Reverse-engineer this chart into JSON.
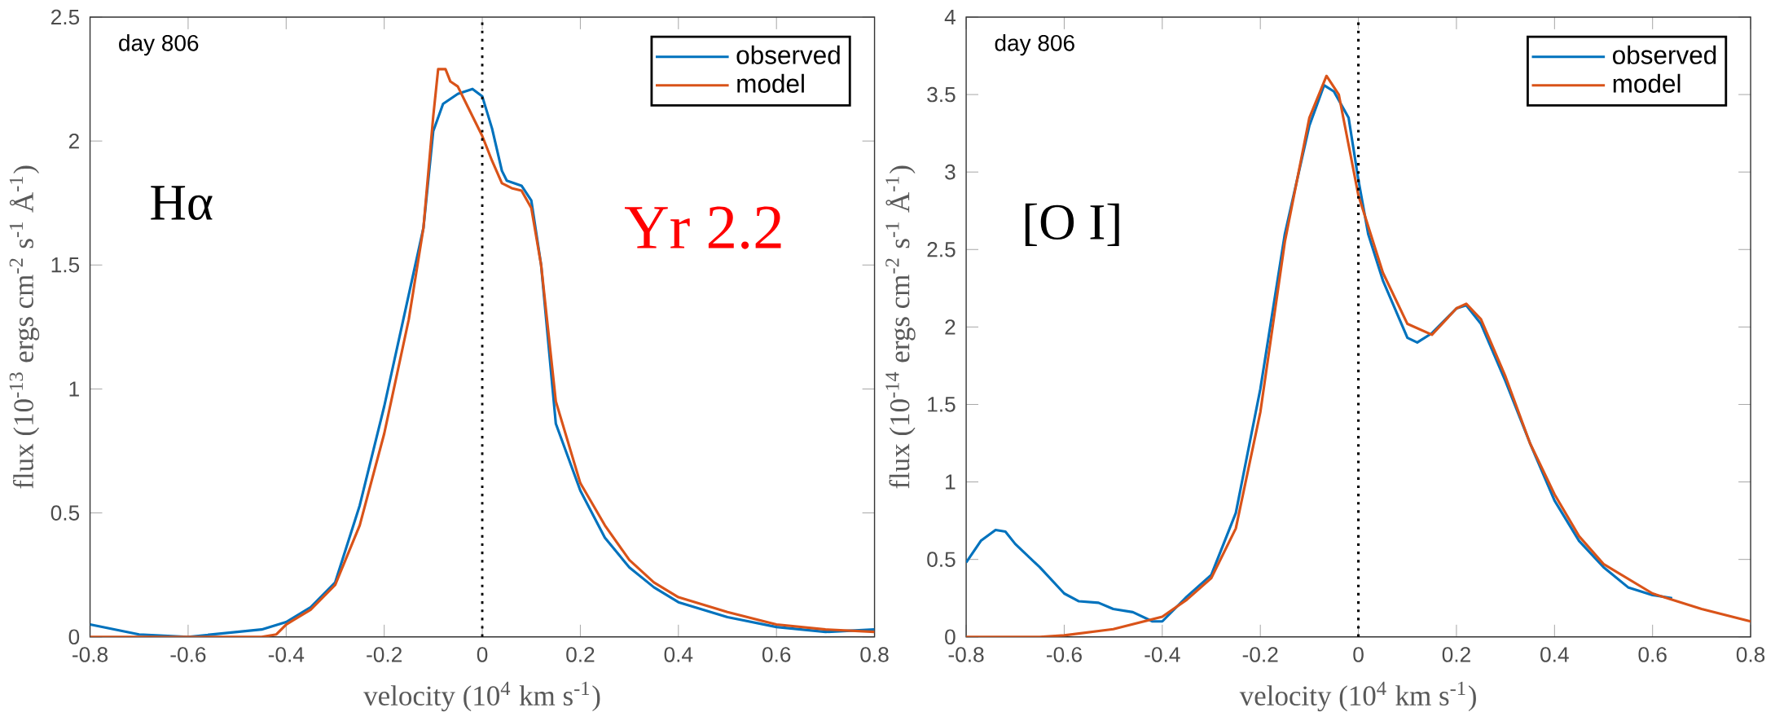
{
  "chart_data": [
    {
      "type": "line",
      "xlabel": "velocity (10$^{4}$ km s$^{-1}$)",
      "ylabel": "flux (10$^{-13}$ ergs cm$^{-2}$ s$^{-1}$ Å$^{-1}$)",
      "annotations": [
        "day 806",
        "Hα",
        "Yr  2.2"
      ],
      "xlim": [
        -0.8,
        0.8
      ],
      "ylim": [
        0,
        2.5
      ],
      "xticks": [
        -0.8,
        -0.6,
        -0.4,
        -0.2,
        0,
        0.2,
        0.4,
        0.6,
        0.8
      ],
      "yticks": [
        0,
        0.5,
        1,
        1.5,
        2,
        2.5
      ],
      "grid": false,
      "legend": "top right",
      "line_style": "solid",
      "ref_lines": [
        {
          "axis": "x",
          "value": 0,
          "color": "#000000",
          "line_style": "dotted"
        }
      ],
      "series": [
        {
          "name": "observed",
          "color": "#0072bd",
          "x": [
            -0.8,
            -0.7,
            -0.6,
            -0.5,
            -0.45,
            -0.4,
            -0.35,
            -0.3,
            -0.25,
            -0.2,
            -0.15,
            -0.12,
            -0.1,
            -0.08,
            -0.05,
            -0.02,
            0,
            0.02,
            0.04,
            0.05,
            0.08,
            0.1,
            0.12,
            0.15,
            0.2,
            0.25,
            0.3,
            0.35,
            0.4,
            0.5,
            0.6,
            0.7,
            0.8
          ],
          "values": [
            0.05,
            0.01,
            0.0,
            0.02,
            0.03,
            0.06,
            0.12,
            0.22,
            0.53,
            0.93,
            1.38,
            1.65,
            2.04,
            2.15,
            2.19,
            2.21,
            2.18,
            2.05,
            1.88,
            1.84,
            1.82,
            1.76,
            1.5,
            0.86,
            0.59,
            0.4,
            0.28,
            0.2,
            0.14,
            0.08,
            0.04,
            0.02,
            0.03
          ]
        },
        {
          "name": "model",
          "color": "#d95319",
          "x": [
            -0.8,
            -0.45,
            -0.42,
            -0.4,
            -0.35,
            -0.3,
            -0.25,
            -0.2,
            -0.15,
            -0.12,
            -0.1,
            -0.09,
            -0.075,
            -0.065,
            -0.05,
            -0.03,
            0,
            0.02,
            0.04,
            0.06,
            0.08,
            0.1,
            0.12,
            0.15,
            0.2,
            0.25,
            0.3,
            0.35,
            0.4,
            0.5,
            0.6,
            0.7,
            0.8
          ],
          "values": [
            0,
            0,
            0.01,
            0.05,
            0.11,
            0.21,
            0.45,
            0.82,
            1.28,
            1.65,
            2.1,
            2.29,
            2.29,
            2.24,
            2.22,
            2.14,
            2.02,
            1.92,
            1.83,
            1.81,
            1.8,
            1.73,
            1.5,
            0.95,
            0.62,
            0.45,
            0.31,
            0.22,
            0.16,
            0.1,
            0.05,
            0.03,
            0.02
          ]
        }
      ]
    },
    {
      "type": "line",
      "xlabel": "velocity (10$^{4}$ km s$^{-1}$)",
      "ylabel": "flux (10$^{-14}$ ergs cm$^{-2}$ s$^{-1}$ Å$^{-1}$)",
      "annotations": [
        "day 806",
        "[O I]"
      ],
      "xlim": [
        -0.8,
        0.8
      ],
      "ylim": [
        0,
        4
      ],
      "xticks": [
        -0.8,
        -0.6,
        -0.4,
        -0.2,
        0,
        0.2,
        0.4,
        0.6,
        0.8
      ],
      "yticks": [
        0,
        0.5,
        1,
        1.5,
        2,
        2.5,
        3,
        3.5,
        4
      ],
      "grid": false,
      "legend": "top right",
      "line_style": "solid",
      "ref_lines": [
        {
          "axis": "x",
          "value": 0,
          "color": "#000000",
          "line_style": "dotted"
        }
      ],
      "series": [
        {
          "name": "observed",
          "color": "#0072bd",
          "x": [
            -0.8,
            -0.77,
            -0.74,
            -0.72,
            -0.7,
            -0.65,
            -0.6,
            -0.57,
            -0.53,
            -0.5,
            -0.46,
            -0.42,
            -0.4,
            -0.35,
            -0.3,
            -0.25,
            -0.2,
            -0.15,
            -0.1,
            -0.07,
            -0.05,
            -0.02,
            0,
            0.02,
            0.05,
            0.1,
            0.12,
            0.15,
            0.2,
            0.22,
            0.25,
            0.3,
            0.35,
            0.4,
            0.45,
            0.5,
            0.55,
            0.6,
            0.64
          ],
          "values": [
            0.48,
            0.62,
            0.69,
            0.68,
            0.6,
            0.45,
            0.28,
            0.23,
            0.22,
            0.18,
            0.16,
            0.1,
            0.1,
            0.26,
            0.4,
            0.8,
            1.6,
            2.6,
            3.3,
            3.56,
            3.52,
            3.35,
            2.95,
            2.6,
            2.3,
            1.93,
            1.9,
            1.96,
            2.12,
            2.14,
            2.02,
            1.65,
            1.25,
            0.88,
            0.62,
            0.45,
            0.32,
            0.27,
            0.25
          ]
        },
        {
          "name": "model",
          "color": "#d95319",
          "x": [
            -0.8,
            -0.65,
            -0.6,
            -0.5,
            -0.4,
            -0.35,
            -0.3,
            -0.25,
            -0.2,
            -0.15,
            -0.1,
            -0.065,
            -0.04,
            0,
            0.05,
            0.1,
            0.15,
            0.2,
            0.22,
            0.25,
            0.3,
            0.35,
            0.4,
            0.45,
            0.5,
            0.6,
            0.7,
            0.8
          ],
          "values": [
            0,
            0,
            0.01,
            0.05,
            0.13,
            0.24,
            0.38,
            0.7,
            1.45,
            2.55,
            3.35,
            3.62,
            3.5,
            2.85,
            2.35,
            2.02,
            1.95,
            2.12,
            2.15,
            2.05,
            1.68,
            1.25,
            0.92,
            0.65,
            0.47,
            0.28,
            0.18,
            0.1
          ]
        }
      ]
    }
  ]
}
